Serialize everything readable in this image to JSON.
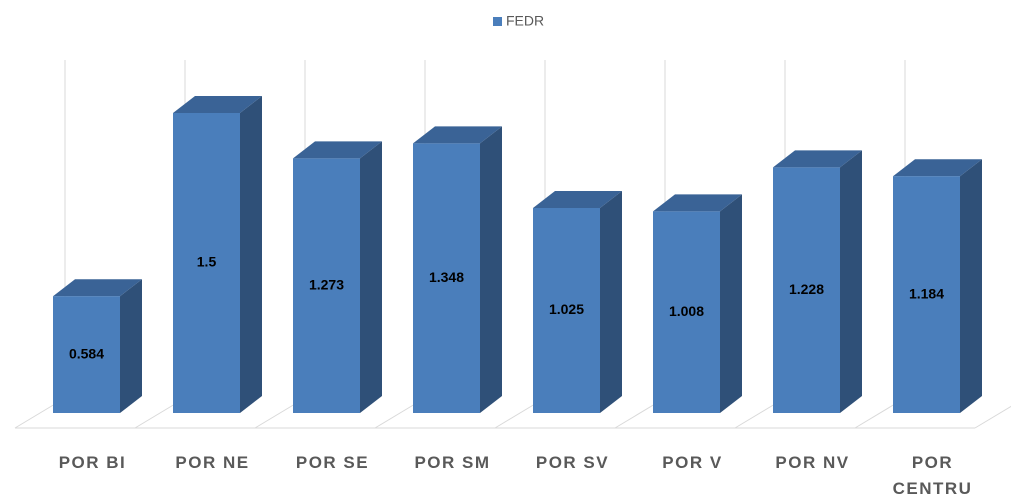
{
  "chart_data": {
    "type": "bar3d",
    "categories": [
      "POR BI",
      "POR NE",
      "POR SE",
      "POR SM",
      "POR SV",
      "POR V",
      "POR NV",
      "POR CENTRU"
    ],
    "series": [
      {
        "name": "FEDR",
        "color": "#4a7ebb",
        "values": [
          0.584,
          1.5,
          1.273,
          1.348,
          1.025,
          1.008,
          1.228,
          1.184
        ]
      }
    ],
    "legend": "top"
  }
}
